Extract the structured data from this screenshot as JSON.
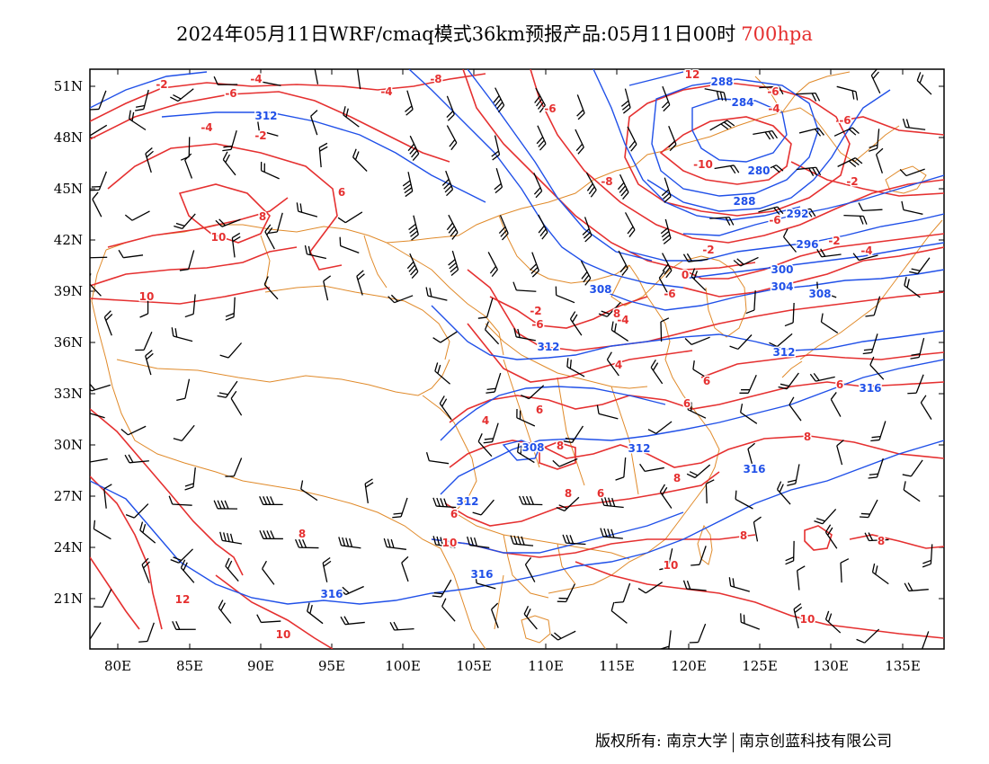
{
  "title": {
    "main": "2024年05月11日WRF/cmaq模式36km预报产品:05月11日00时",
    "level": "700hpa"
  },
  "axes": {
    "lat_ticks": [
      "51N",
      "48N",
      "45N",
      "42N",
      "39N",
      "36N",
      "33N",
      "30N",
      "27N",
      "24N",
      "21N"
    ],
    "lon_ticks": [
      "80E",
      "85E",
      "90E",
      "95E",
      "100E",
      "105E",
      "110E",
      "115E",
      "120E",
      "125E",
      "130E",
      "135E"
    ]
  },
  "contour_labels": {
    "geopotential_blue": [
      "288",
      "284",
      "280",
      "288",
      "292",
      "296",
      "300",
      "304",
      "308",
      "308",
      "312",
      "312",
      "312",
      "308",
      "312",
      "316",
      "316",
      "312",
      "316",
      "316"
    ],
    "temperature_red": [
      "-2",
      "-4",
      "-6",
      "-8",
      "-6",
      "-4",
      "-4",
      "-2",
      "-6",
      "-10",
      "-6",
      "-8",
      "-6",
      "-2",
      "-4",
      "-2",
      "-6",
      "2",
      "6",
      "8",
      "10",
      "10",
      "12",
      "-4",
      "-6",
      "-2",
      "4",
      "6",
      "4",
      "6",
      "6",
      "6",
      "8",
      "8",
      "8",
      "6",
      "8",
      "8",
      "8",
      "10",
      "12",
      "10",
      "10",
      "10",
      "8",
      "6",
      "8",
      "-2",
      "0",
      "-4"
    ]
  },
  "colors": {
    "temperature": "#e53030",
    "geopotential": "#2050e8",
    "boundary": "#e08a2a",
    "wind": "#000000"
  },
  "footer": {
    "owner": "版权所有: 南京大学",
    "company": "南京创蓝科技有限公司"
  }
}
